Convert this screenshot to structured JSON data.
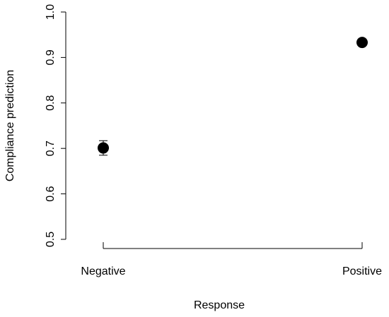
{
  "chart_data": {
    "type": "dot",
    "x_label": "Response",
    "y_label": "Compliance prediction",
    "categories": [
      "Negative",
      "Positive"
    ],
    "values": [
      0.701,
      0.933
    ],
    "errors": [
      0.016,
      0.005
    ],
    "color": "#000000",
    "ylim": [
      0.5,
      1.0
    ],
    "yticks": [
      0.5,
      0.6,
      0.7,
      0.8,
      0.9,
      {
        "value": 1.0,
        "label": "1.0"
      }
    ],
    "grid": false
  }
}
